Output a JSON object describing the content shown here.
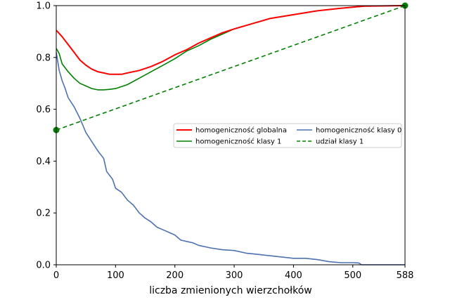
{
  "chart_data": {
    "type": "line",
    "title": "",
    "xlabel": "liczba zmienionych wierzchołków",
    "ylabel": "",
    "xlim": [
      0,
      588
    ],
    "ylim": [
      0,
      1.0
    ],
    "xticks": [
      0,
      100,
      200,
      300,
      400,
      500,
      588
    ],
    "yticks": [
      0.0,
      0.2,
      0.4,
      0.6,
      0.8,
      1.0
    ],
    "xtick_labels": [
      "0",
      "100",
      "200",
      "300",
      "400",
      "500",
      "588"
    ],
    "ytick_labels": [
      "0.0",
      "0.2",
      "0.4",
      "0.6",
      "0.8",
      "1.0"
    ],
    "grid": false,
    "legend_position": "center-right",
    "series": [
      {
        "name": "homogeniczność globalna",
        "color": "#ff0000",
        "style": "solid",
        "points": [
          [
            0,
            0.905
          ],
          [
            10,
            0.88
          ],
          [
            20,
            0.85
          ],
          [
            30,
            0.82
          ],
          [
            40,
            0.79
          ],
          [
            50,
            0.77
          ],
          [
            60,
            0.755
          ],
          [
            70,
            0.745
          ],
          [
            80,
            0.74
          ],
          [
            90,
            0.735
          ],
          [
            100,
            0.735
          ],
          [
            110,
            0.735
          ],
          [
            120,
            0.74
          ],
          [
            140,
            0.75
          ],
          [
            160,
            0.765
          ],
          [
            180,
            0.785
          ],
          [
            200,
            0.81
          ],
          [
            220,
            0.83
          ],
          [
            240,
            0.855
          ],
          [
            260,
            0.875
          ],
          [
            280,
            0.895
          ],
          [
            300,
            0.91
          ],
          [
            330,
            0.93
          ],
          [
            360,
            0.95
          ],
          [
            400,
            0.965
          ],
          [
            440,
            0.98
          ],
          [
            480,
            0.99
          ],
          [
            520,
            0.998
          ],
          [
            588,
            1.0
          ]
        ]
      },
      {
        "name": "homogeniczność klasy 1",
        "color": "#008000",
        "style": "solid",
        "points": [
          [
            0,
            0.835
          ],
          [
            5,
            0.815
          ],
          [
            10,
            0.775
          ],
          [
            20,
            0.745
          ],
          [
            30,
            0.72
          ],
          [
            40,
            0.7
          ],
          [
            50,
            0.69
          ],
          [
            60,
            0.68
          ],
          [
            70,
            0.675
          ],
          [
            80,
            0.675
          ],
          [
            90,
            0.677
          ],
          [
            100,
            0.68
          ],
          [
            120,
            0.695
          ],
          [
            140,
            0.72
          ],
          [
            160,
            0.745
          ],
          [
            180,
            0.77
          ],
          [
            200,
            0.795
          ],
          [
            220,
            0.825
          ],
          [
            240,
            0.845
          ],
          [
            260,
            0.87
          ],
          [
            280,
            0.89
          ],
          [
            300,
            0.91
          ],
          [
            330,
            0.93
          ],
          [
            360,
            0.95
          ],
          [
            400,
            0.965
          ],
          [
            440,
            0.98
          ],
          [
            480,
            0.99
          ],
          [
            520,
            0.998
          ],
          [
            588,
            1.0
          ]
        ]
      },
      {
        "name": "homogeniczność klasy 0",
        "color": "#4c72b0",
        "style": "solid",
        "points": [
          [
            0,
            0.82
          ],
          [
            5,
            0.75
          ],
          [
            10,
            0.71
          ],
          [
            15,
            0.68
          ],
          [
            20,
            0.645
          ],
          [
            30,
            0.61
          ],
          [
            40,
            0.565
          ],
          [
            50,
            0.51
          ],
          [
            60,
            0.475
          ],
          [
            70,
            0.44
          ],
          [
            80,
            0.41
          ],
          [
            85,
            0.36
          ],
          [
            95,
            0.33
          ],
          [
            100,
            0.295
          ],
          [
            110,
            0.28
          ],
          [
            120,
            0.25
          ],
          [
            130,
            0.23
          ],
          [
            140,
            0.2
          ],
          [
            150,
            0.18
          ],
          [
            160,
            0.165
          ],
          [
            170,
            0.145
          ],
          [
            180,
            0.135
          ],
          [
            190,
            0.125
          ],
          [
            200,
            0.115
          ],
          [
            210,
            0.095
          ],
          [
            220,
            0.09
          ],
          [
            230,
            0.085
          ],
          [
            240,
            0.075
          ],
          [
            260,
            0.065
          ],
          [
            280,
            0.058
          ],
          [
            300,
            0.055
          ],
          [
            320,
            0.045
          ],
          [
            340,
            0.04
          ],
          [
            360,
            0.035
          ],
          [
            380,
            0.03
          ],
          [
            400,
            0.025
          ],
          [
            420,
            0.025
          ],
          [
            440,
            0.02
          ],
          [
            460,
            0.012
          ],
          [
            480,
            0.008
          ],
          [
            500,
            0.008
          ],
          [
            510,
            0.007
          ],
          [
            515,
            0.0
          ],
          [
            588,
            0.0
          ]
        ]
      },
      {
        "name": "udział klasy 1",
        "color": "#008000",
        "style": "dashed",
        "points": [
          [
            0,
            0.52
          ],
          [
            588,
            1.0
          ]
        ]
      }
    ]
  }
}
